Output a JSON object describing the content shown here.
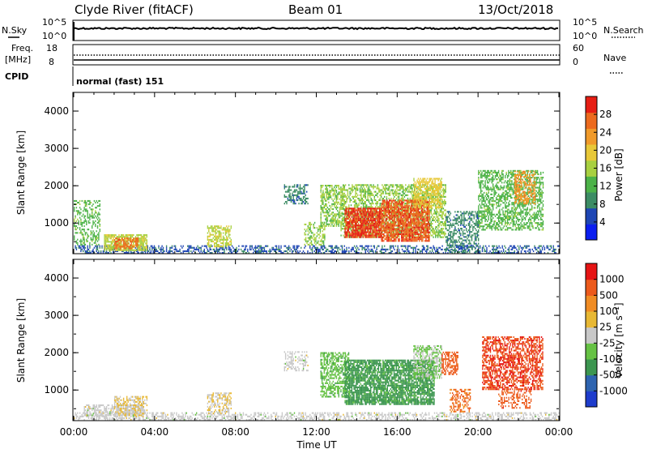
{
  "header": {
    "station": "Clyde River (fitACF)",
    "beam": "Beam 01",
    "date": "13/Oct/2018"
  },
  "status_panels": {
    "nsky_label": "N.Sky",
    "nsearch_label": "N.Search",
    "left_ticks_top": [
      "10^5",
      "10^0"
    ],
    "right_ticks_top": [
      "10^5",
      "10^0"
    ],
    "freq_label": "Freq.",
    "freq_unit": "[MHz]",
    "freq_ticks": [
      "18",
      "8"
    ],
    "nave_label": "Nave",
    "nave_ticks": [
      "60",
      "0"
    ],
    "cpid_label": "CPID",
    "cpid_value": "normal (fast) 151"
  },
  "chart_data": [
    {
      "type": "heatmap",
      "title": "",
      "xlabel": "",
      "ylabel": "Slant Range [km]",
      "xlim": [
        0,
        24
      ],
      "ylim": [
        180,
        4500
      ],
      "yticks": [
        "1000",
        "2000",
        "3000",
        "4000"
      ],
      "colorbar_label": "Power [dB]",
      "colorbar_ticks": [
        "4",
        "8",
        "12",
        "16",
        "20",
        "24",
        "28"
      ],
      "colorbar_range": [
        0,
        30
      ],
      "colors": [
        "#0a1ef0",
        "#1e46b4",
        "#3c8c64",
        "#4cb248",
        "#a8d040",
        "#e8c838",
        "#f09a2a",
        "#ec6a1e",
        "#e61e14"
      ],
      "regions": [
        {
          "t0": 0.0,
          "t1": 24.0,
          "r0": 180,
          "r1": 380,
          "value": 6,
          "density": 0.45
        },
        {
          "t0": 0.0,
          "t1": 1.3,
          "r0": 400,
          "r1": 1600,
          "value": 12,
          "density": 0.35
        },
        {
          "t0": 1.5,
          "t1": 3.6,
          "r0": 250,
          "r1": 700,
          "value": 16,
          "density": 0.8
        },
        {
          "t0": 2.0,
          "t1": 3.2,
          "r0": 300,
          "r1": 600,
          "value": 25,
          "density": 0.6
        },
        {
          "t0": 6.6,
          "t1": 7.8,
          "r0": 350,
          "r1": 900,
          "value": 16,
          "density": 0.55
        },
        {
          "t0": 10.4,
          "t1": 11.6,
          "r0": 1500,
          "r1": 2000,
          "value": 8,
          "density": 0.5
        },
        {
          "t0": 11.4,
          "t1": 12.4,
          "r0": 400,
          "r1": 1000,
          "value": 14,
          "density": 0.4
        },
        {
          "t0": 12.2,
          "t1": 13.4,
          "r0": 900,
          "r1": 2000,
          "value": 14,
          "density": 0.55
        },
        {
          "t0": 13.2,
          "t1": 18.4,
          "r0": 600,
          "r1": 2000,
          "value": 14,
          "density": 0.55
        },
        {
          "t0": 13.4,
          "t1": 15.2,
          "r0": 600,
          "r1": 1400,
          "value": 27,
          "density": 0.85
        },
        {
          "t0": 15.2,
          "t1": 17.6,
          "r0": 500,
          "r1": 1600,
          "value": 26,
          "density": 0.8
        },
        {
          "t0": 16.8,
          "t1": 18.2,
          "r0": 1400,
          "r1": 2200,
          "value": 18,
          "density": 0.6
        },
        {
          "t0": 18.4,
          "t1": 20.0,
          "r0": 200,
          "r1": 1300,
          "value": 8,
          "density": 0.45
        },
        {
          "t0": 20.0,
          "t1": 23.2,
          "r0": 800,
          "r1": 2400,
          "value": 12,
          "density": 0.55
        },
        {
          "t0": 21.8,
          "t1": 22.8,
          "r0": 1500,
          "r1": 2400,
          "value": 22,
          "density": 0.5
        }
      ]
    },
    {
      "type": "heatmap",
      "title": "",
      "xlabel": "Time UT",
      "ylabel": "Slant Range [km]",
      "xlim": [
        0,
        24
      ],
      "ylim": [
        180,
        4500
      ],
      "xticks": [
        "00:00",
        "04:00",
        "08:00",
        "12:00",
        "16:00",
        "20:00",
        "00:00"
      ],
      "yticks": [
        "1000",
        "2000",
        "3000",
        "4000"
      ],
      "colorbar_label": "Velocity [m s⁻¹]",
      "colorbar_ticks": [
        "1000",
        "500",
        "100",
        "25",
        "-25",
        "-100",
        "-500",
        "-1000"
      ],
      "colorbar_range": [
        -1200,
        1200
      ],
      "colors": [
        "#1e3ccc",
        "#2e64b0",
        "#3c9650",
        "#66c244",
        "#c8c8c8",
        "#e8b834",
        "#f08c24",
        "#ec5a1c",
        "#e61414"
      ],
      "regions": [
        {
          "t0": 0.0,
          "t1": 24.0,
          "r0": 180,
          "r1": 380,
          "value": 0,
          "density": 0.45
        },
        {
          "t0": 0.5,
          "t1": 3.5,
          "r0": 300,
          "r1": 600,
          "value": 0,
          "density": 0.6
        },
        {
          "t0": 2.0,
          "t1": 3.6,
          "r0": 300,
          "r1": 800,
          "value": 150,
          "density": 0.55
        },
        {
          "t0": 6.6,
          "t1": 7.8,
          "r0": 350,
          "r1": 900,
          "value": 120,
          "density": 0.5
        },
        {
          "t0": 10.4,
          "t1": 11.6,
          "r0": 1500,
          "r1": 2000,
          "value": 0,
          "density": 0.4
        },
        {
          "t0": 12.2,
          "t1": 13.6,
          "r0": 800,
          "r1": 2000,
          "value": -300,
          "density": 0.55
        },
        {
          "t0": 13.4,
          "t1": 17.8,
          "r0": 600,
          "r1": 1800,
          "value": -500,
          "density": 0.8
        },
        {
          "t0": 16.8,
          "t1": 18.2,
          "r0": 1300,
          "r1": 2200,
          "value": -150,
          "density": 0.6
        },
        {
          "t0": 18.2,
          "t1": 19.0,
          "r0": 1400,
          "r1": 2000,
          "value": 800,
          "density": 0.6
        },
        {
          "t0": 18.6,
          "t1": 19.6,
          "r0": 400,
          "r1": 1000,
          "value": 700,
          "density": 0.5
        },
        {
          "t0": 20.2,
          "t1": 23.2,
          "r0": 1000,
          "r1": 2400,
          "value": 900,
          "density": 0.6
        },
        {
          "t0": 21.0,
          "t1": 22.6,
          "r0": 500,
          "r1": 1000,
          "value": 800,
          "density": 0.4
        }
      ]
    }
  ]
}
